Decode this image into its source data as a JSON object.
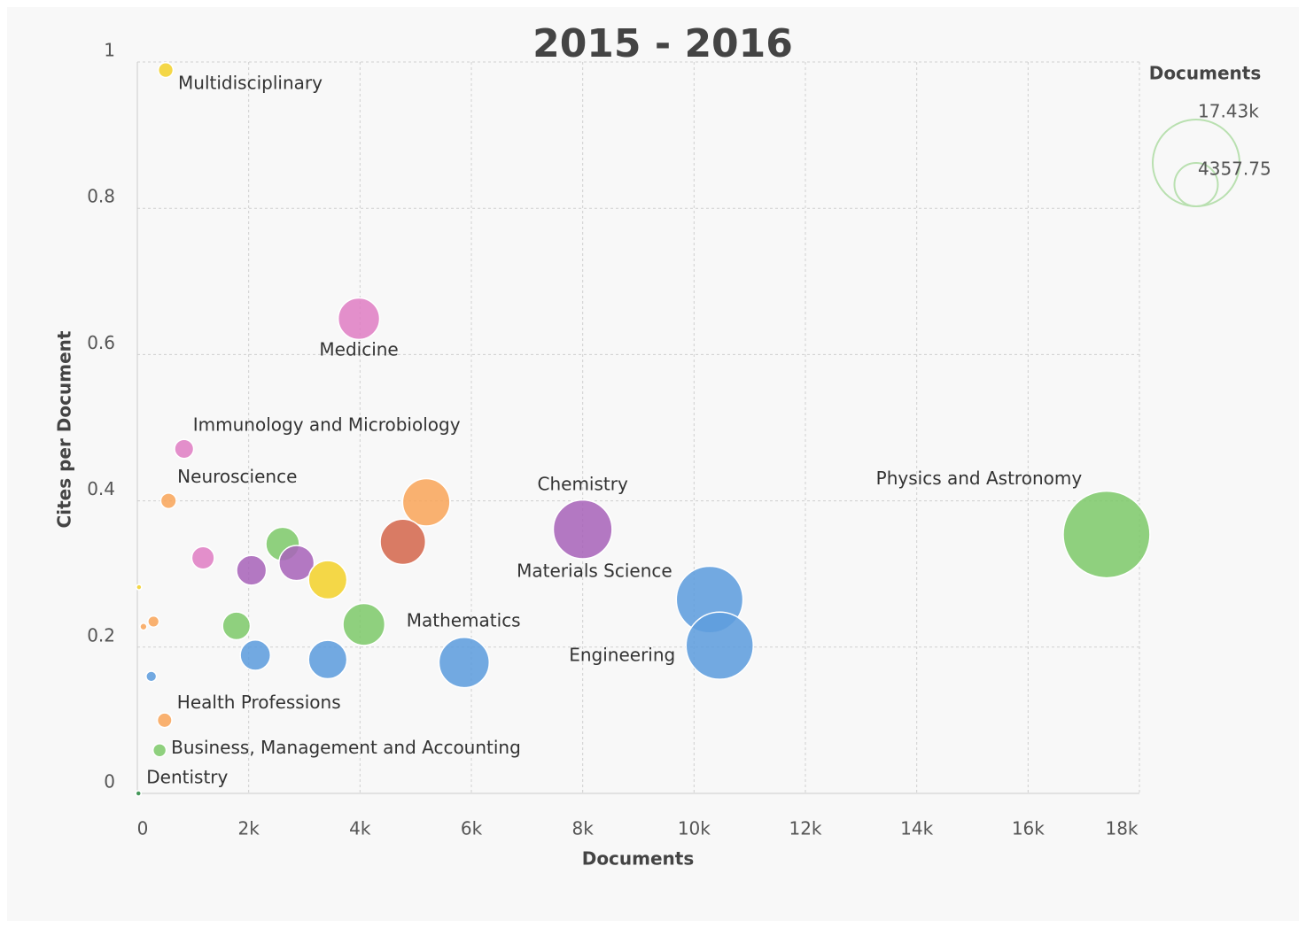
{
  "chart_data": {
    "type": "bubble",
    "title": "2015 - 2016",
    "xlabel": "Documents",
    "ylabel": "Cites per Document",
    "xlim": [
      0,
      18000
    ],
    "ylim": [
      0,
      1
    ],
    "xticks": [
      0,
      {
        "value": 2000,
        "label": "2k"
      },
      {
        "value": 4000,
        "label": "4k"
      },
      {
        "value": 6000,
        "label": "6k"
      },
      {
        "value": 8000,
        "label": "8k"
      },
      {
        "value": 10000,
        "label": "10k"
      },
      {
        "value": 12000,
        "label": "12k"
      },
      {
        "value": 14000,
        "label": "14k"
      },
      {
        "value": 16000,
        "label": "16k"
      },
      {
        "value": 18000,
        "label": "18k"
      }
    ],
    "yticks": [
      0,
      0.2,
      0.4,
      0.6,
      0.8,
      1
    ],
    "grid": true,
    "x": [
      510,
      3980,
      840,
      560,
      5190,
      8000,
      4770,
      2610,
      2860,
      2050,
      1180,
      3420,
      30,
      10280,
      10460,
      17410,
      4070,
      1780,
      290,
      110,
      2120,
      3420,
      5870,
      250,
      490,
      400,
      20
    ],
    "y": [
      0.989,
      0.649,
      0.471,
      0.4,
      0.398,
      0.361,
      0.344,
      0.341,
      0.315,
      0.305,
      0.322,
      0.292,
      0.282,
      0.265,
      0.202,
      0.354,
      0.231,
      0.229,
      0.235,
      0.228,
      0.189,
      0.183,
      0.179,
      0.16,
      0.1,
      0.059,
      0
    ],
    "size": [
      510,
      3980,
      840,
      560,
      5190,
      8000,
      4770,
      2610,
      2860,
      2050,
      1180,
      3420,
      30,
      10280,
      10460,
      17410,
      4070,
      1780,
      290,
      110,
      2120,
      3420,
      5870,
      250,
      490,
      400,
      20
    ],
    "colors": [
      "#f2d22e",
      "#df7fc4",
      "#df7fc4",
      "#f8a65c",
      "#f8a65c",
      "#a865b9",
      "#d4694e",
      "#80c96c",
      "#a865b9",
      "#a865b9",
      "#df7fc4",
      "#f2d22e",
      "#f2d22e",
      "#5e9ddd",
      "#5e9ddd",
      "#80c96c",
      "#80c96c",
      "#80c96c",
      "#f8a65c",
      "#f8a65c",
      "#5e9ddd",
      "#5e9ddd",
      "#5e9ddd",
      "#5e9ddd",
      "#f8a65c",
      "#80c96c",
      "#2e8b45"
    ],
    "labels": [
      "Multidisciplinary",
      "Medicine",
      "Immunology and Microbiology",
      "Neuroscience",
      null,
      "Chemistry",
      null,
      null,
      null,
      null,
      null,
      null,
      null,
      "Materials Science",
      "Engineering",
      "Physics and Astronomy",
      "Mathematics",
      null,
      null,
      null,
      null,
      null,
      null,
      null,
      "Health Professions",
      "Business, Management and Accounting",
      "Dentistry"
    ],
    "size_legend": {
      "title": "Documents",
      "values": [
        {
          "value": 17430,
          "label": "17.43k"
        },
        {
          "value": 4357.75,
          "label": "4357.75"
        }
      ]
    }
  }
}
